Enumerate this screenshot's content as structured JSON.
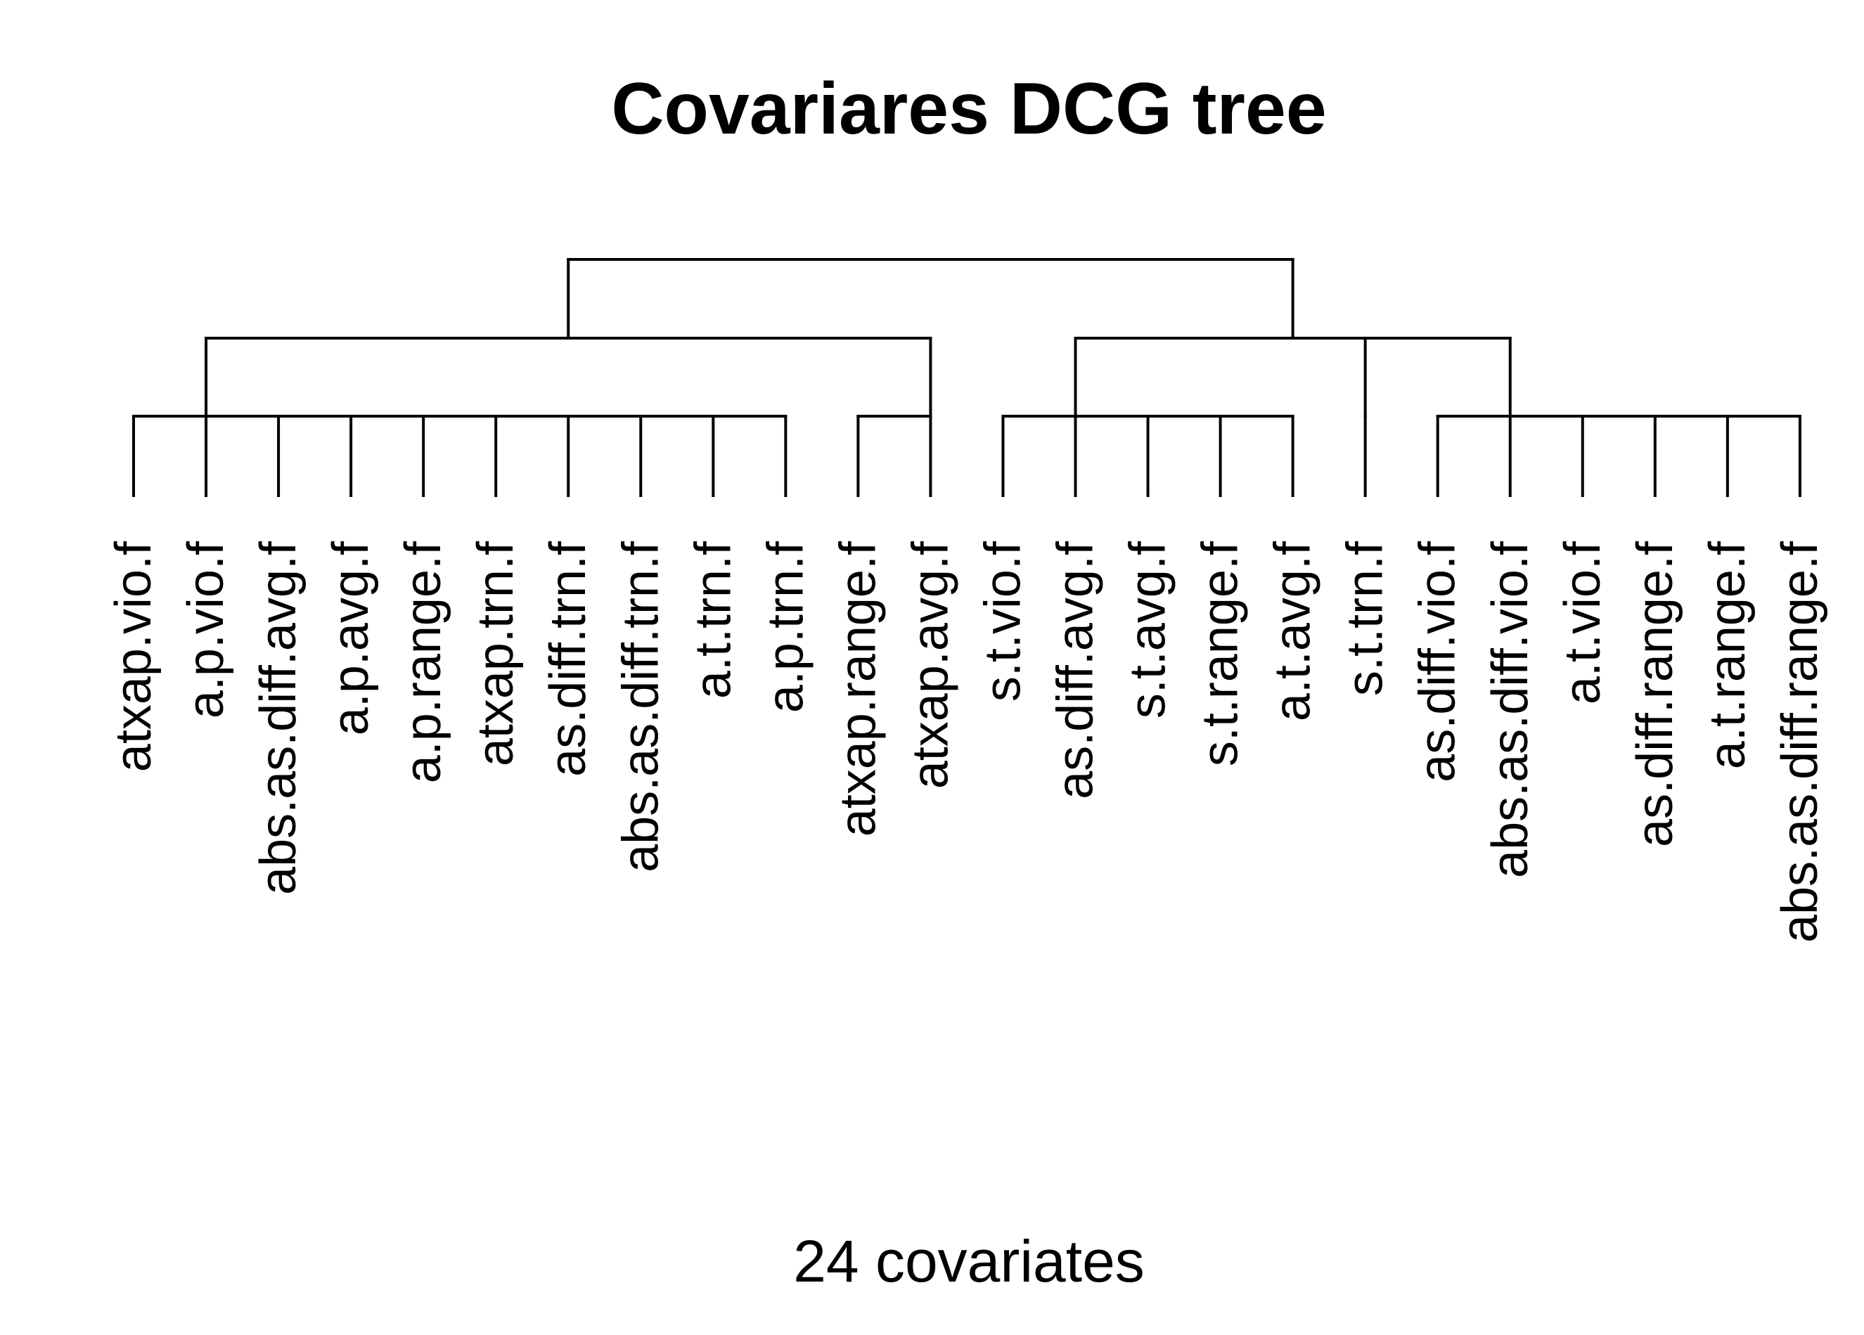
{
  "title": "Covariares DCG tree",
  "footer": "24 covariates",
  "leaves": [
    "atxap.vio.f",
    "a.p.vio.f",
    "abs.as.diff.avg.f",
    "a.p.avg.f",
    "a.p.range.f",
    "atxap.trn.f",
    "as.diff.trn.f",
    "abs.as.diff.trn.f",
    "a.t.trn.f",
    "a.p.trn.f",
    "atxap.range.f",
    "atxap.avg.f",
    "s.t.vio.f",
    "as.diff.avg.f",
    "s.t.avg.f",
    "s.t.range.f",
    "a.t.avg.f",
    "s.t.trn.f",
    "as.diff.vio.f",
    "abs.as.diff.vio.f",
    "a.t.vio.f",
    "as.diff.range.f",
    "a.t.range.f",
    "abs.as.diff.range.f"
  ],
  "tree": {
    "id": "root",
    "level": 3,
    "children": [
      {
        "id": "L",
        "level": 2,
        "children": [
          {
            "id": "L1",
            "level": 1,
            "leaves": [
              0,
              1,
              2,
              3,
              4,
              5,
              6,
              7,
              8,
              9
            ]
          },
          {
            "id": "L2",
            "level": 1,
            "leaves": [
              10,
              11
            ]
          }
        ]
      },
      {
        "id": "R",
        "level": 2,
        "children": [
          {
            "id": "R1",
            "level": 1,
            "leaves": [
              12,
              13,
              14,
              15,
              16
            ]
          },
          {
            "id": "R2",
            "level": 1,
            "leaves": [
              17
            ]
          },
          {
            "id": "R3",
            "level": 1,
            "leaves": [
              18,
              19,
              20,
              21,
              22,
              23
            ]
          }
        ]
      }
    ]
  }
}
